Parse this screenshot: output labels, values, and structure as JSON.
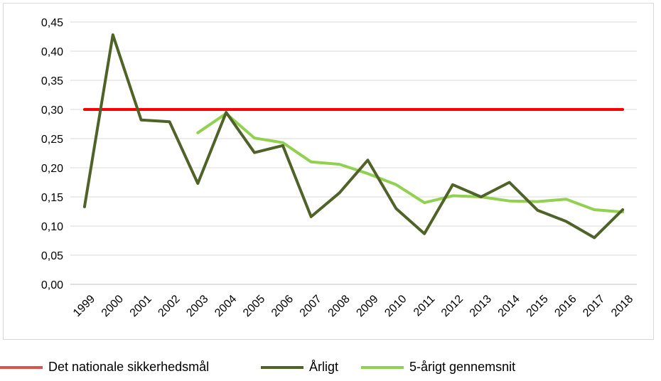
{
  "chart_data": {
    "type": "line",
    "x": [
      "1999",
      "2000",
      "2001",
      "2002",
      "2003",
      "2004",
      "2005",
      "2006",
      "2007",
      "2008",
      "2009",
      "2010",
      "2011",
      "2012",
      "2013",
      "2014",
      "2015",
      "2016",
      "2017",
      "2018"
    ],
    "ylim": [
      0,
      0.45
    ],
    "yticks": [
      "0,00",
      "0,05",
      "0,10",
      "0,15",
      "0,20",
      "0,25",
      "0,30",
      "0,35",
      "0,40",
      "0,45"
    ],
    "grid": true,
    "legend_position": "bottom",
    "series": [
      {
        "name": "Det nationale sikkerhedsmål",
        "color": "#ff0000",
        "values": [
          0.3,
          0.3,
          0.3,
          0.3,
          0.3,
          0.3,
          0.3,
          0.3,
          0.3,
          0.3,
          0.3,
          0.3,
          0.3,
          0.3,
          0.3,
          0.3,
          0.3,
          0.3,
          0.3,
          0.3
        ]
      },
      {
        "name": "Årligt",
        "color": "#4f6228",
        "values": [
          0.133,
          0.428,
          0.282,
          0.279,
          0.173,
          0.295,
          0.226,
          0.238,
          0.116,
          0.157,
          0.213,
          0.13,
          0.087,
          0.171,
          0.15,
          0.175,
          0.127,
          0.108,
          0.08,
          0.128
        ]
      },
      {
        "name": "5-årigt gennemsnit",
        "color": "#92d050",
        "values": [
          null,
          null,
          null,
          null,
          0.26,
          0.293,
          0.251,
          0.243,
          0.21,
          0.206,
          0.19,
          0.171,
          0.14,
          0.152,
          0.15,
          0.143,
          0.142,
          0.146,
          0.128,
          0.124
        ]
      }
    ]
  }
}
